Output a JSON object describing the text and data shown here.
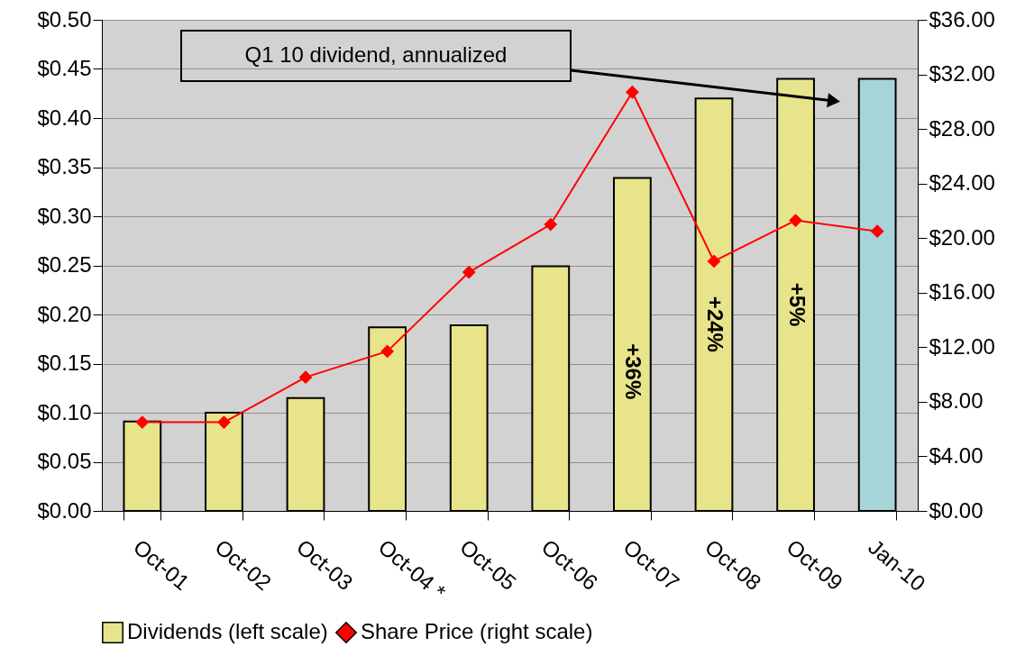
{
  "chart_data": {
    "type": "bar",
    "categories": [
      "Oct-01",
      "Oct-02",
      "Oct-03",
      "Oct-04 *",
      "Oct-05",
      "Oct-06",
      "Oct-07",
      "Oct-08",
      "Oct-09",
      "Jan-10"
    ],
    "series": [
      {
        "name": "Dividends (left scale)",
        "colors": [
          "#e8e48c",
          "#e8e48c",
          "#e8e48c",
          "#e8e48c",
          "#e8e48c",
          "#e8e48c",
          "#e8e48c",
          "#e8e48c",
          "#e8e48c",
          "#a6d4d8"
        ],
        "values": [
          0.091,
          0.1,
          0.115,
          0.187,
          0.189,
          0.249,
          0.339,
          0.42,
          0.44,
          0.44
        ]
      },
      {
        "name": "Share Price (right scale)",
        "type": "line",
        "axis": "y2",
        "color": "#ff0000",
        "values": [
          6.5,
          6.5,
          9.8,
          11.7,
          17.5,
          21.0,
          30.7,
          18.3,
          21.3,
          20.5
        ]
      }
    ],
    "ylim": [
      0,
      0.5
    ],
    "yticks": [
      {
        "value": 0,
        "label": "$0.00"
      },
      {
        "value": 0.05,
        "label": "$0.05"
      },
      {
        "value": 0.1,
        "label": "$0.10"
      },
      {
        "value": 0.15,
        "label": "$0.15"
      },
      {
        "value": 0.2,
        "label": "$0.20"
      },
      {
        "value": 0.25,
        "label": "$0.25"
      },
      {
        "value": 0.3,
        "label": "$0.30"
      },
      {
        "value": 0.35,
        "label": "$0.35"
      },
      {
        "value": 0.4,
        "label": "$0.40"
      },
      {
        "value": 0.45,
        "label": "$0.45"
      },
      {
        "value": 0.5,
        "label": "$0.50"
      }
    ],
    "y2lim": [
      0,
      36
    ],
    "y2ticks": [
      {
        "value": 0,
        "label": "$0.00"
      },
      {
        "value": 4,
        "label": "$4.00"
      },
      {
        "value": 8,
        "label": "$8.00"
      },
      {
        "value": 12,
        "label": "$12.00"
      },
      {
        "value": 16,
        "label": "$16.00"
      },
      {
        "value": 20,
        "label": "$20.00"
      },
      {
        "value": 24,
        "label": "$24.00"
      },
      {
        "value": 28,
        "label": "$28.00"
      },
      {
        "value": 32,
        "label": "$32.00"
      },
      {
        "value": 36,
        "label": "$36.00"
      }
    ],
    "annotations": [
      "Q1 10 dividend, annualized",
      {
        "text": "+36%",
        "x": "Oct-07",
        "y": 0.142
      },
      {
        "text": "+24%",
        "x": "Oct-08",
        "y": 0.19
      },
      {
        "text": "+5%",
        "x": "Oct-09",
        "y": 0.21
      }
    ],
    "grid": "y",
    "legend": "bottom",
    "marker": "diamond"
  }
}
